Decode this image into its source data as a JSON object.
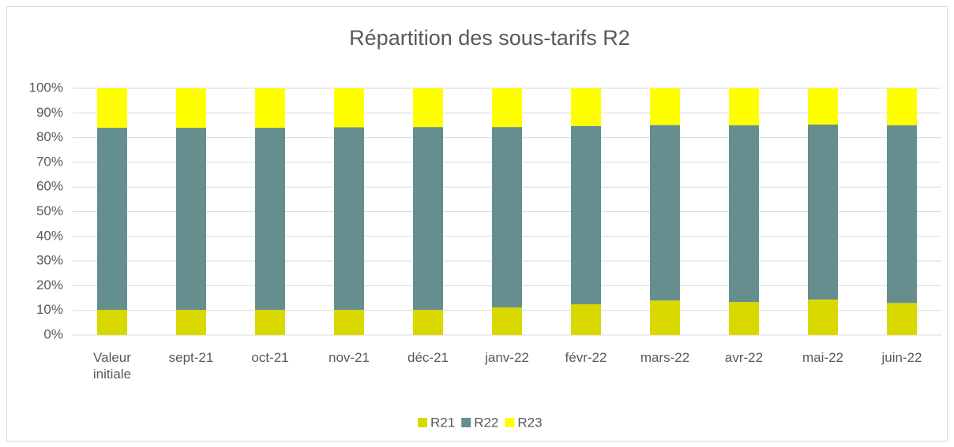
{
  "chart_data": {
    "type": "stacked_bar",
    "title": "Répartition des sous-tarifs R2",
    "categories": [
      "Valeur initiale",
      "sept-21",
      "oct-21",
      "nov-21",
      "déc-21",
      "janv-22",
      "févr-22",
      "mars-22",
      "avr-22",
      "mai-22",
      "juin-22"
    ],
    "series": [
      {
        "name": "R21",
        "color": "#d9d900",
        "values": [
          10.2,
          10.2,
          10.2,
          10.2,
          10.2,
          11.2,
          12.5,
          14,
          13.4,
          14.4,
          13
        ]
      },
      {
        "name": "R22",
        "color": "#668e8e",
        "values": [
          73.8,
          73.8,
          73.8,
          74,
          74.1,
          73.1,
          72.2,
          71.1,
          71.6,
          70.9,
          72
        ]
      },
      {
        "name": "R23",
        "color": "#ffff00",
        "values": [
          16,
          16,
          16,
          15.8,
          15.7,
          15.7,
          15.3,
          14.9,
          15,
          14.7,
          15
        ]
      }
    ],
    "ylim": [
      0,
      100
    ],
    "yticks": [
      {
        "value": 0,
        "label": "0%"
      },
      {
        "value": 10,
        "label": "10%"
      },
      {
        "value": 20,
        "label": "20%"
      },
      {
        "value": 30,
        "label": "30%"
      },
      {
        "value": 40,
        "label": "40%"
      },
      {
        "value": 50,
        "label": "50%"
      },
      {
        "value": 60,
        "label": "60%"
      },
      {
        "value": 70,
        "label": "70%"
      },
      {
        "value": 80,
        "label": "80%"
      },
      {
        "value": 90,
        "label": "90%"
      },
      {
        "value": 100,
        "label": "100%"
      }
    ],
    "grid": true,
    "legend": "bottom"
  }
}
